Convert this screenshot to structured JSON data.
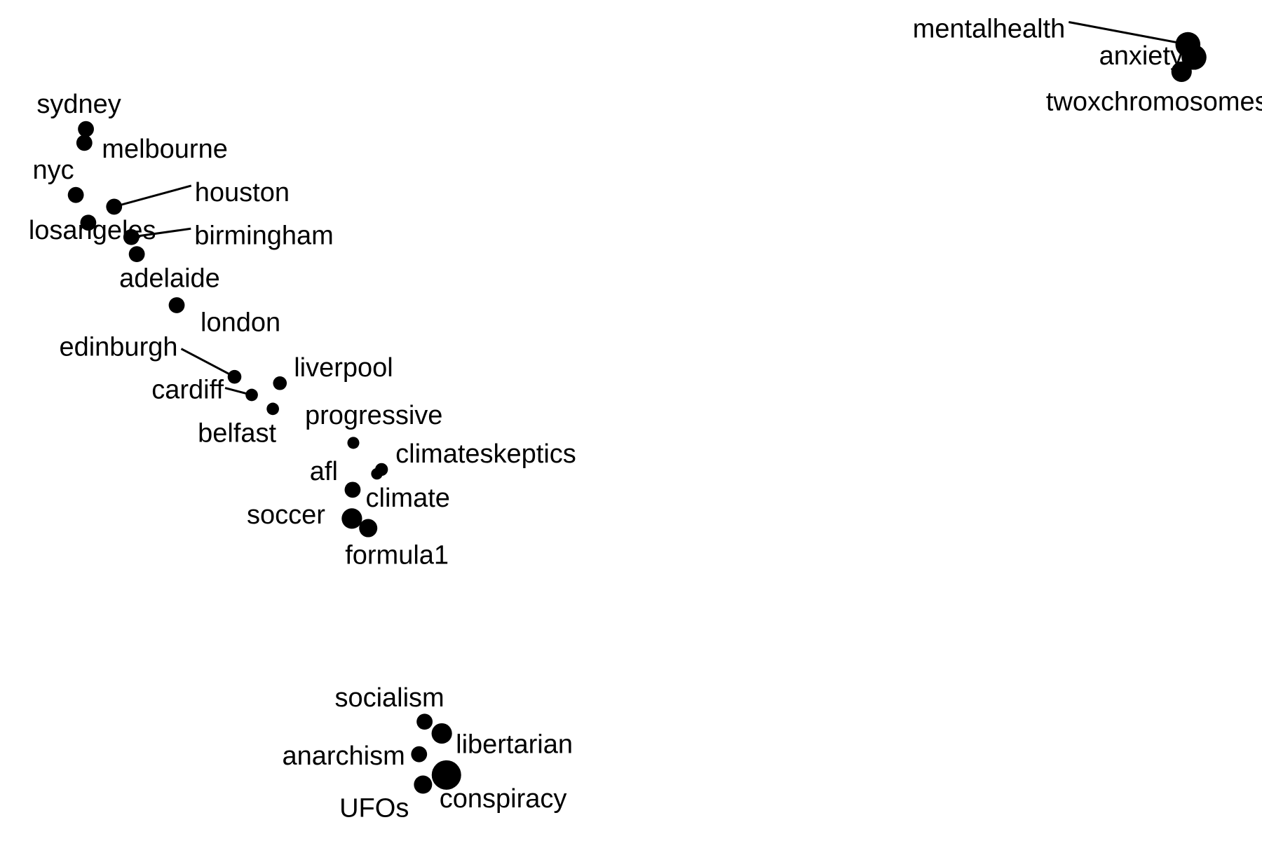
{
  "chart_data": {
    "type": "scatter",
    "title": "",
    "xlabel": "",
    "ylabel": "",
    "axes_visible": false,
    "grid": false,
    "legend": "none",
    "marker_color": "#000000",
    "points": [
      {
        "name": "mentalhealth",
        "x": 0.9565,
        "y": 0.9706,
        "size": 4
      },
      {
        "name": "anxiety",
        "x": 0.9615,
        "y": 0.9546,
        "size": 4
      },
      {
        "name": "twoxchromosomes",
        "x": 0.9513,
        "y": 0.9365,
        "size": 3
      },
      {
        "name": "sydney",
        "x": 0.0532,
        "y": 0.8648,
        "size": 2
      },
      {
        "name": "melbourne",
        "x": 0.0519,
        "y": 0.8475,
        "size": 2
      },
      {
        "name": "nyc",
        "x": 0.0449,
        "y": 0.7823,
        "size": 2
      },
      {
        "name": "houston",
        "x": 0.0763,
        "y": 0.7676,
        "size": 2
      },
      {
        "name": "losangeles",
        "x": 0.0551,
        "y": 0.7476,
        "size": 2
      },
      {
        "name": "birmingham",
        "x": 0.0904,
        "y": 0.7296,
        "size": 2
      },
      {
        "name": "adelaide",
        "x": 0.0949,
        "y": 0.7082,
        "size": 2
      },
      {
        "name": "london",
        "x": 0.1276,
        "y": 0.6443,
        "size": 2
      },
      {
        "name": "edinburgh",
        "x": 0.175,
        "y": 0.5547,
        "size": 1.5
      },
      {
        "name": "liverpool",
        "x": 0.2122,
        "y": 0.5467,
        "size": 1.5
      },
      {
        "name": "cardiff",
        "x": 0.1891,
        "y": 0.532,
        "size": 1.2
      },
      {
        "name": "belfast",
        "x": 0.2064,
        "y": 0.5146,
        "size": 1.2
      },
      {
        "name": "progressive",
        "x": 0.2724,
        "y": 0.472,
        "size": 1.1
      },
      {
        "name": "climateskeptics",
        "x": 0.2955,
        "y": 0.4387,
        "size": 1.3
      },
      {
        "name": "climate",
        "x": 0.2917,
        "y": 0.4333,
        "size": 1
      },
      {
        "name": "afl",
        "x": 0.2718,
        "y": 0.4133,
        "size": 2
      },
      {
        "name": "soccer",
        "x": 0.2712,
        "y": 0.3773,
        "size": 3
      },
      {
        "name": "formula1",
        "x": 0.2846,
        "y": 0.3653,
        "size": 2.5
      },
      {
        "name": "socialism",
        "x": 0.3308,
        "y": 0.123,
        "size": 2
      },
      {
        "name": "libertarian",
        "x": 0.3449,
        "y": 0.1083,
        "size": 3
      },
      {
        "name": "anarchism",
        "x": 0.3263,
        "y": 0.0823,
        "size": 2
      },
      {
        "name": "conspiracy",
        "x": 0.3487,
        "y": 0.0563,
        "size": 5
      },
      {
        "name": "UFOs",
        "x": 0.3295,
        "y": 0.0443,
        "size": 2.5
      }
    ]
  }
}
